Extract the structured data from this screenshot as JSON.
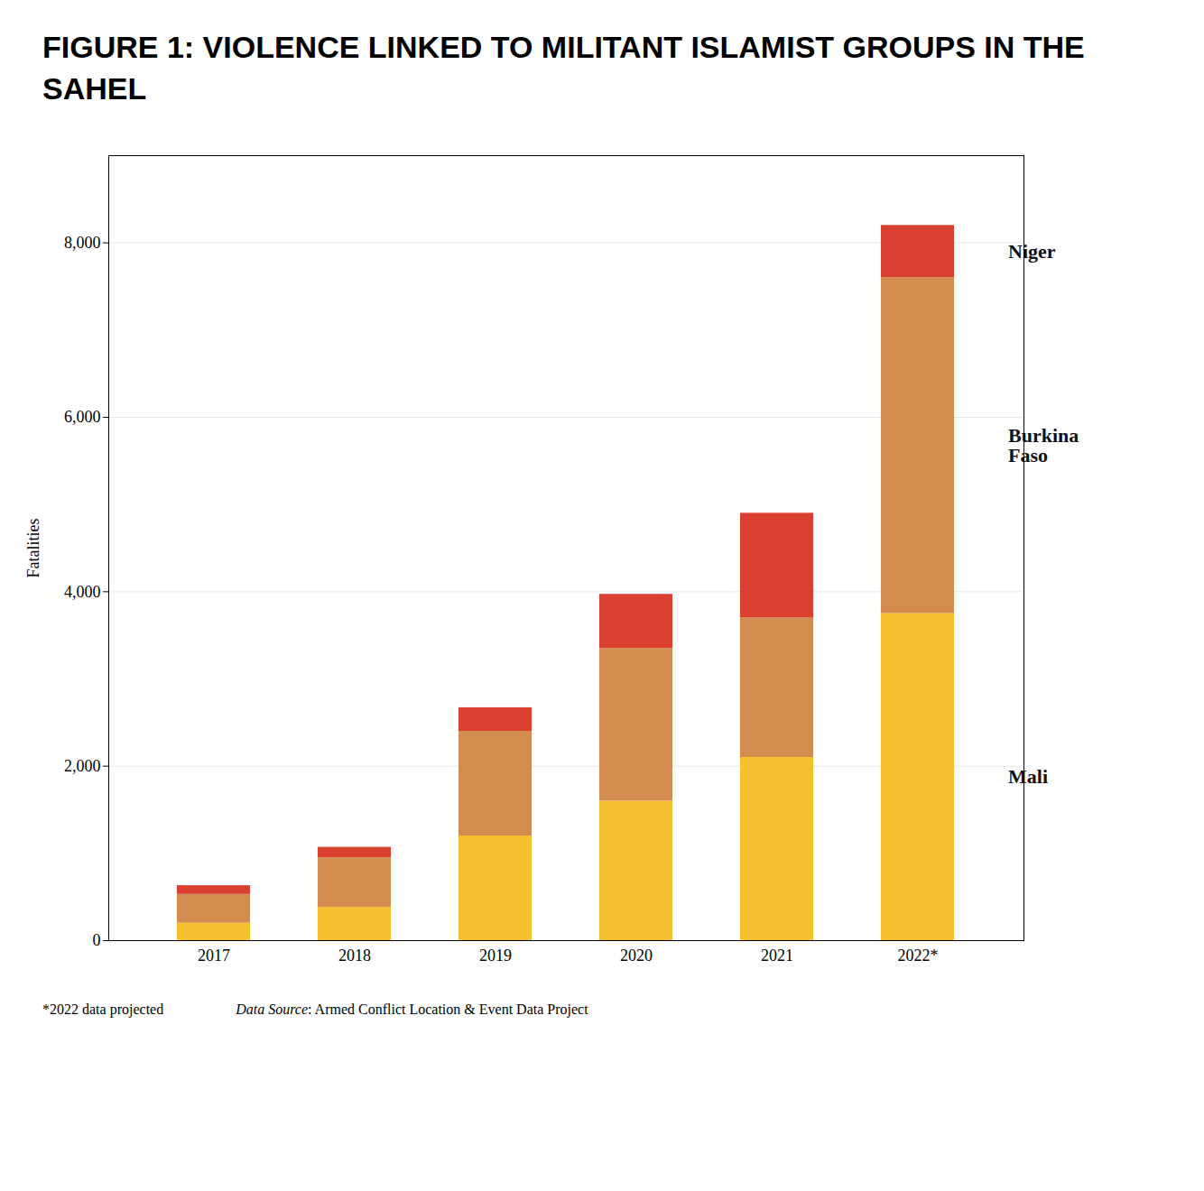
{
  "chart_data": {
    "type": "bar",
    "stacked": true,
    "title": "FIGURE 1: VIOLENCE LINKED TO MILITANT ISLAMIST GROUPS IN THE SAHEL",
    "categories": [
      "2017",
      "2018",
      "2019",
      "2020",
      "2021",
      "2022*"
    ],
    "series": [
      {
        "name": "Mali",
        "color": "#f5c030",
        "values": [
          200,
          380,
          1200,
          1600,
          2100,
          3750
        ]
      },
      {
        "name": "Burkina Faso",
        "color": "#d48b50",
        "values": [
          330,
          570,
          1200,
          1750,
          1600,
          3850
        ]
      },
      {
        "name": "Niger",
        "color": "#d94030",
        "values": [
          100,
          120,
          270,
          620,
          1200,
          600
        ]
      }
    ],
    "ylabel": "Fatalities",
    "ylim": [
      0,
      9000
    ],
    "yticks": [
      0,
      {
        "value": 2000,
        "label": "2,000"
      },
      {
        "value": 4000,
        "label": "4,000"
      },
      {
        "value": 6000,
        "label": "6,000"
      },
      {
        "value": 8000,
        "label": "8,000"
      }
    ],
    "grid": true,
    "annotations": [
      "*2022 data projected",
      "Data Source: Armed Conflict Location & Event Data Project"
    ]
  }
}
